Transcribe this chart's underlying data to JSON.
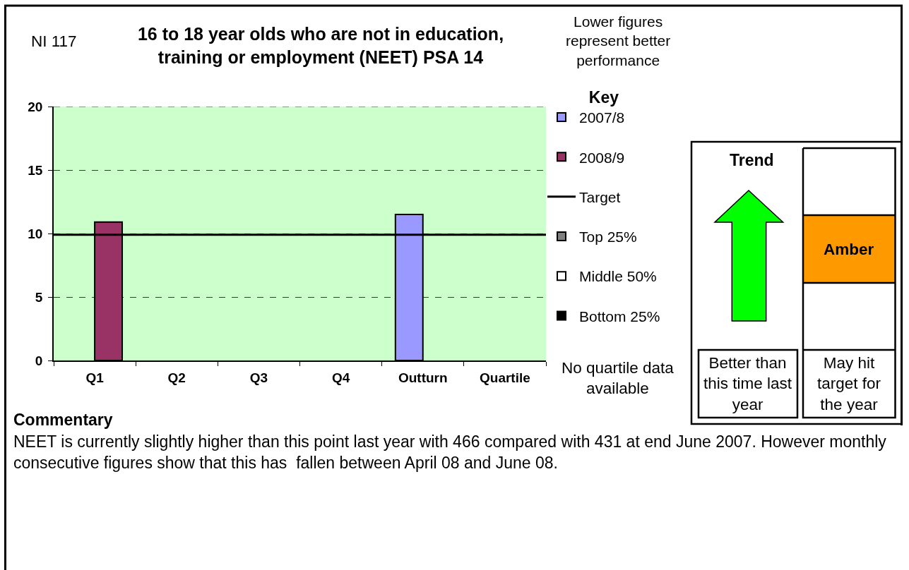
{
  "chart_data": {
    "type": "bar",
    "title": "16 to 18 year olds who are not in education, training or employment (NEET) PSA 14",
    "categories": [
      "Q1",
      "Q2",
      "Q3",
      "Q4",
      "Outturn",
      "Quartile"
    ],
    "series": [
      {
        "name": "2007/8",
        "color": "#9999ff",
        "values": [
          null,
          null,
          null,
          null,
          11.5,
          null
        ]
      },
      {
        "name": "2008/9",
        "color": "#993366",
        "values": [
          10.9,
          null,
          null,
          null,
          null,
          null
        ]
      },
      {
        "name": "Top 25%",
        "color": "#808080",
        "values": [
          null,
          null,
          null,
          null,
          null,
          null
        ]
      },
      {
        "name": "Middle 50%",
        "color": "#ffffff",
        "values": [
          null,
          null,
          null,
          null,
          null,
          null
        ]
      },
      {
        "name": "Bottom 25%",
        "color": "#000000",
        "values": [
          null,
          null,
          null,
          null,
          null,
          null
        ]
      }
    ],
    "ylim": [
      0,
      20
    ],
    "yticks": [
      0,
      5,
      10,
      15,
      20
    ],
    "grid": "y",
    "legend": "right",
    "legend_title": "Key",
    "ref_lines": [
      {
        "axis": "y",
        "value": 9.9,
        "label": "Target",
        "color": "#000000",
        "line_style": "solid"
      }
    ],
    "annotations": [
      "NI 117",
      "Lower figures represent better performance",
      "No quartile data available",
      "Trend",
      "Amber",
      "Better than this time last year",
      "May hit target for the year",
      "Commentary",
      "NEET is currently slightly higher than this point last year with 466 compared with 431 at end June 2007. However monthly consecutive figures show that this has  fallen between April 08 and June 08."
    ]
  }
}
